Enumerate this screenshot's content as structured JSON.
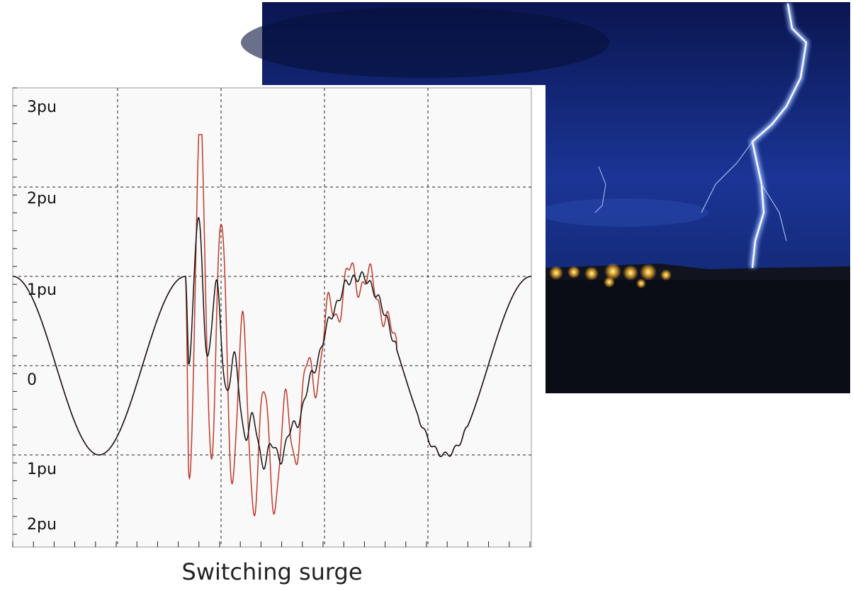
{
  "axis_labels": [
    "3pu",
    "2pu",
    "1pu",
    "0",
    "1pu",
    "2pu"
  ],
  "caption": "Switching surge"
}
